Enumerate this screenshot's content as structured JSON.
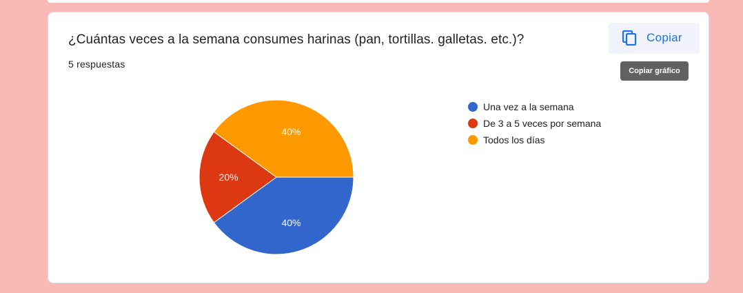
{
  "question": {
    "title": "¿Cuántas veces a la semana consumes harinas (pan, tortillas. galletas. etc.)?",
    "responses": "5 respuestas"
  },
  "toolbar": {
    "copy_label": "Copiar",
    "copy_icon": "copy-icon",
    "tooltip": "Copiar gráfico"
  },
  "colors": {
    "accent": "#1a73e8",
    "background": "#f9b9b7"
  },
  "chart_data": {
    "type": "pie",
    "categories": [
      "Una vez a la semana",
      "De 3 a 5 veces por semana",
      "Todos los días"
    ],
    "values": [
      40,
      20,
      40
    ],
    "labels": [
      "40%",
      "20%",
      "40%"
    ],
    "colors": [
      "#3366cc",
      "#dc3912",
      "#ff9900"
    ],
    "legend_position": "right"
  }
}
